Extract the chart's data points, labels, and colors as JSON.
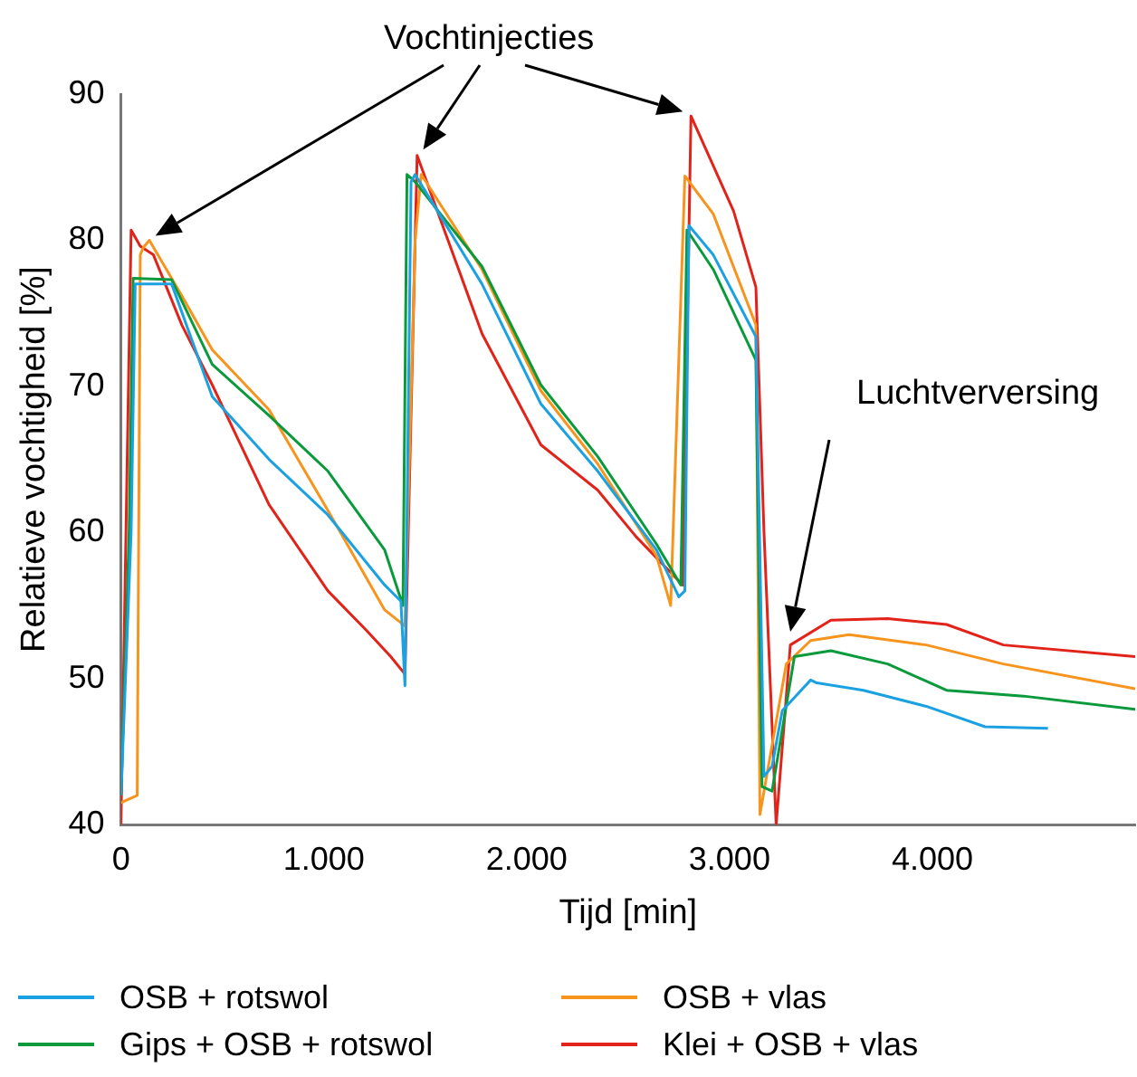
{
  "chart_data": {
    "type": "line",
    "xlabel": "Tijd [min]",
    "ylabel": "Relatieve vochtigheid [%]",
    "xlim": [
      0,
      5000
    ],
    "xticks": [
      {
        "value": 0,
        "label": "0"
      },
      {
        "value": 1000,
        "label": "1.000"
      },
      {
        "value": 2000,
        "label": "2.000"
      },
      {
        "value": 3000,
        "label": "3.000"
      },
      {
        "value": 4000,
        "label": "4.000"
      }
    ],
    "ylim": [
      40,
      90
    ],
    "yticks": [
      40,
      50,
      60,
      70,
      80,
      90
    ],
    "grid": false,
    "legend": "bottom",
    "line_style": "solid",
    "annotations": [
      "Vochtinjecties",
      "Luchtverversing"
    ],
    "series": [
      {
        "name": "OSB + rotswol",
        "color": "#1ba1e2",
        "x": [
          0,
          50,
          70,
          250,
          450,
          730,
          1020,
          1300,
          1380,
          1400,
          1430,
          1450,
          1780,
          2070,
          2350,
          2640,
          2750,
          2780,
          2800,
          2920,
          3130,
          3170,
          3210,
          3260,
          3400,
          3430,
          3660,
          3970,
          4260,
          4570
        ],
        "values": [
          42,
          60,
          77,
          77,
          69.3,
          65,
          61.2,
          56.4,
          55.3,
          49.5,
          84,
          84.5,
          77,
          68.8,
          64.2,
          58.8,
          55.6,
          56,
          81,
          79,
          73.4,
          43.3,
          44,
          47.8,
          49.9,
          49.7,
          49.2,
          48.1,
          46.7,
          46.6
        ]
      },
      {
        "name": "Gips + OSB + rotswol",
        "color": "#0a9a3c",
        "x": [
          0,
          40,
          60,
          250,
          450,
          730,
          1020,
          1300,
          1390,
          1410,
          1450,
          1780,
          2070,
          2350,
          2640,
          2760,
          2790,
          2920,
          3130,
          3160,
          3210,
          3320,
          3500,
          3780,
          4070,
          4450,
          5000
        ],
        "values": [
          42,
          60,
          77.4,
          77.3,
          71.5,
          68,
          64.2,
          58.8,
          55,
          84.5,
          84,
          78.2,
          70.1,
          65.2,
          59.2,
          56.4,
          80.7,
          78,
          71.8,
          42.6,
          42.3,
          51.5,
          51.9,
          51,
          49.2,
          48.8,
          47.9
        ]
      },
      {
        "name": "OSB + vlas",
        "color": "#f7941d",
        "x": [
          0,
          80,
          95,
          110,
          140,
          300,
          450,
          730,
          1020,
          1300,
          1400,
          1450,
          1480,
          1780,
          2070,
          2350,
          2640,
          2710,
          2780,
          2920,
          3130,
          3150,
          3280,
          3400,
          3590,
          3970,
          4350,
          5000
        ],
        "values": [
          41.5,
          42,
          79,
          79.5,
          80,
          76.2,
          72.5,
          68.4,
          61.5,
          54.7,
          53.6,
          80,
          84.5,
          78,
          69.7,
          64.7,
          58.4,
          55,
          84.4,
          81.8,
          74.2,
          40.7,
          51,
          52.6,
          53,
          52.3,
          51,
          49.3
        ]
      },
      {
        "name": "Klei + OSB + vlas",
        "color": "#e2231a",
        "x": [
          0,
          50,
          95,
          160,
          300,
          450,
          590,
          730,
          1020,
          1210,
          1330,
          1400,
          1460,
          1780,
          2070,
          2350,
          2540,
          2770,
          2810,
          3020,
          3130,
          3170,
          3230,
          3300,
          3500,
          3780,
          4070,
          4350,
          5000
        ],
        "values": [
          40,
          80.7,
          79.6,
          79,
          74.2,
          70.1,
          66,
          61.9,
          56,
          53.3,
          51.5,
          50.3,
          85.8,
          73.6,
          66,
          62.9,
          59.7,
          56.4,
          88.5,
          82,
          76.8,
          60,
          40,
          52.3,
          54,
          54.1,
          53.7,
          52.3,
          51.5
        ]
      }
    ]
  }
}
